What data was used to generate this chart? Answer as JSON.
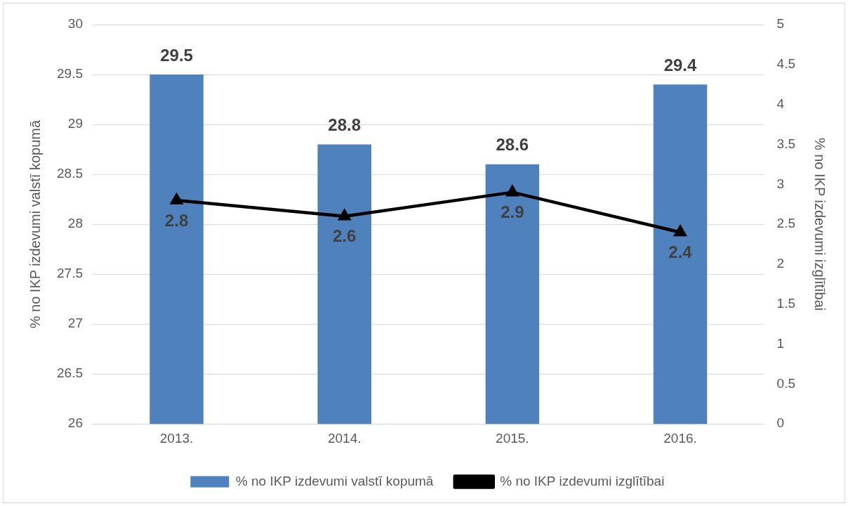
{
  "chart_data": {
    "type": "bar",
    "categories": [
      "2013.",
      "2014.",
      "2015.",
      "2016."
    ],
    "series": [
      {
        "name": "% no IKP izdevumi valstī kopumā",
        "color": "#4f81bd",
        "values": [
          29.5,
          28.8,
          28.6,
          29.4
        ]
      },
      {
        "name": "% no IKP izdevumi izglītībai",
        "type": "line",
        "axis": "y2",
        "color": "#000000",
        "marker": "triangle",
        "values": [
          2.8,
          2.6,
          2.9,
          2.4
        ]
      }
    ],
    "ylabel": "% no IKP izdevumi valstī kopumā",
    "y2label": "% no IKP izdevumi izglītībai",
    "ylim": [
      26,
      30
    ],
    "yticks": [
      26,
      26.5,
      27,
      27.5,
      28,
      28.5,
      29,
      29.5,
      30
    ],
    "y2lim": [
      0,
      5
    ],
    "y2ticks": [
      0,
      0.5,
      1,
      1.5,
      2,
      2.5,
      3,
      3.5,
      4,
      4.5,
      5
    ],
    "grid": "y",
    "legend": "bottom",
    "data_labels": true
  }
}
